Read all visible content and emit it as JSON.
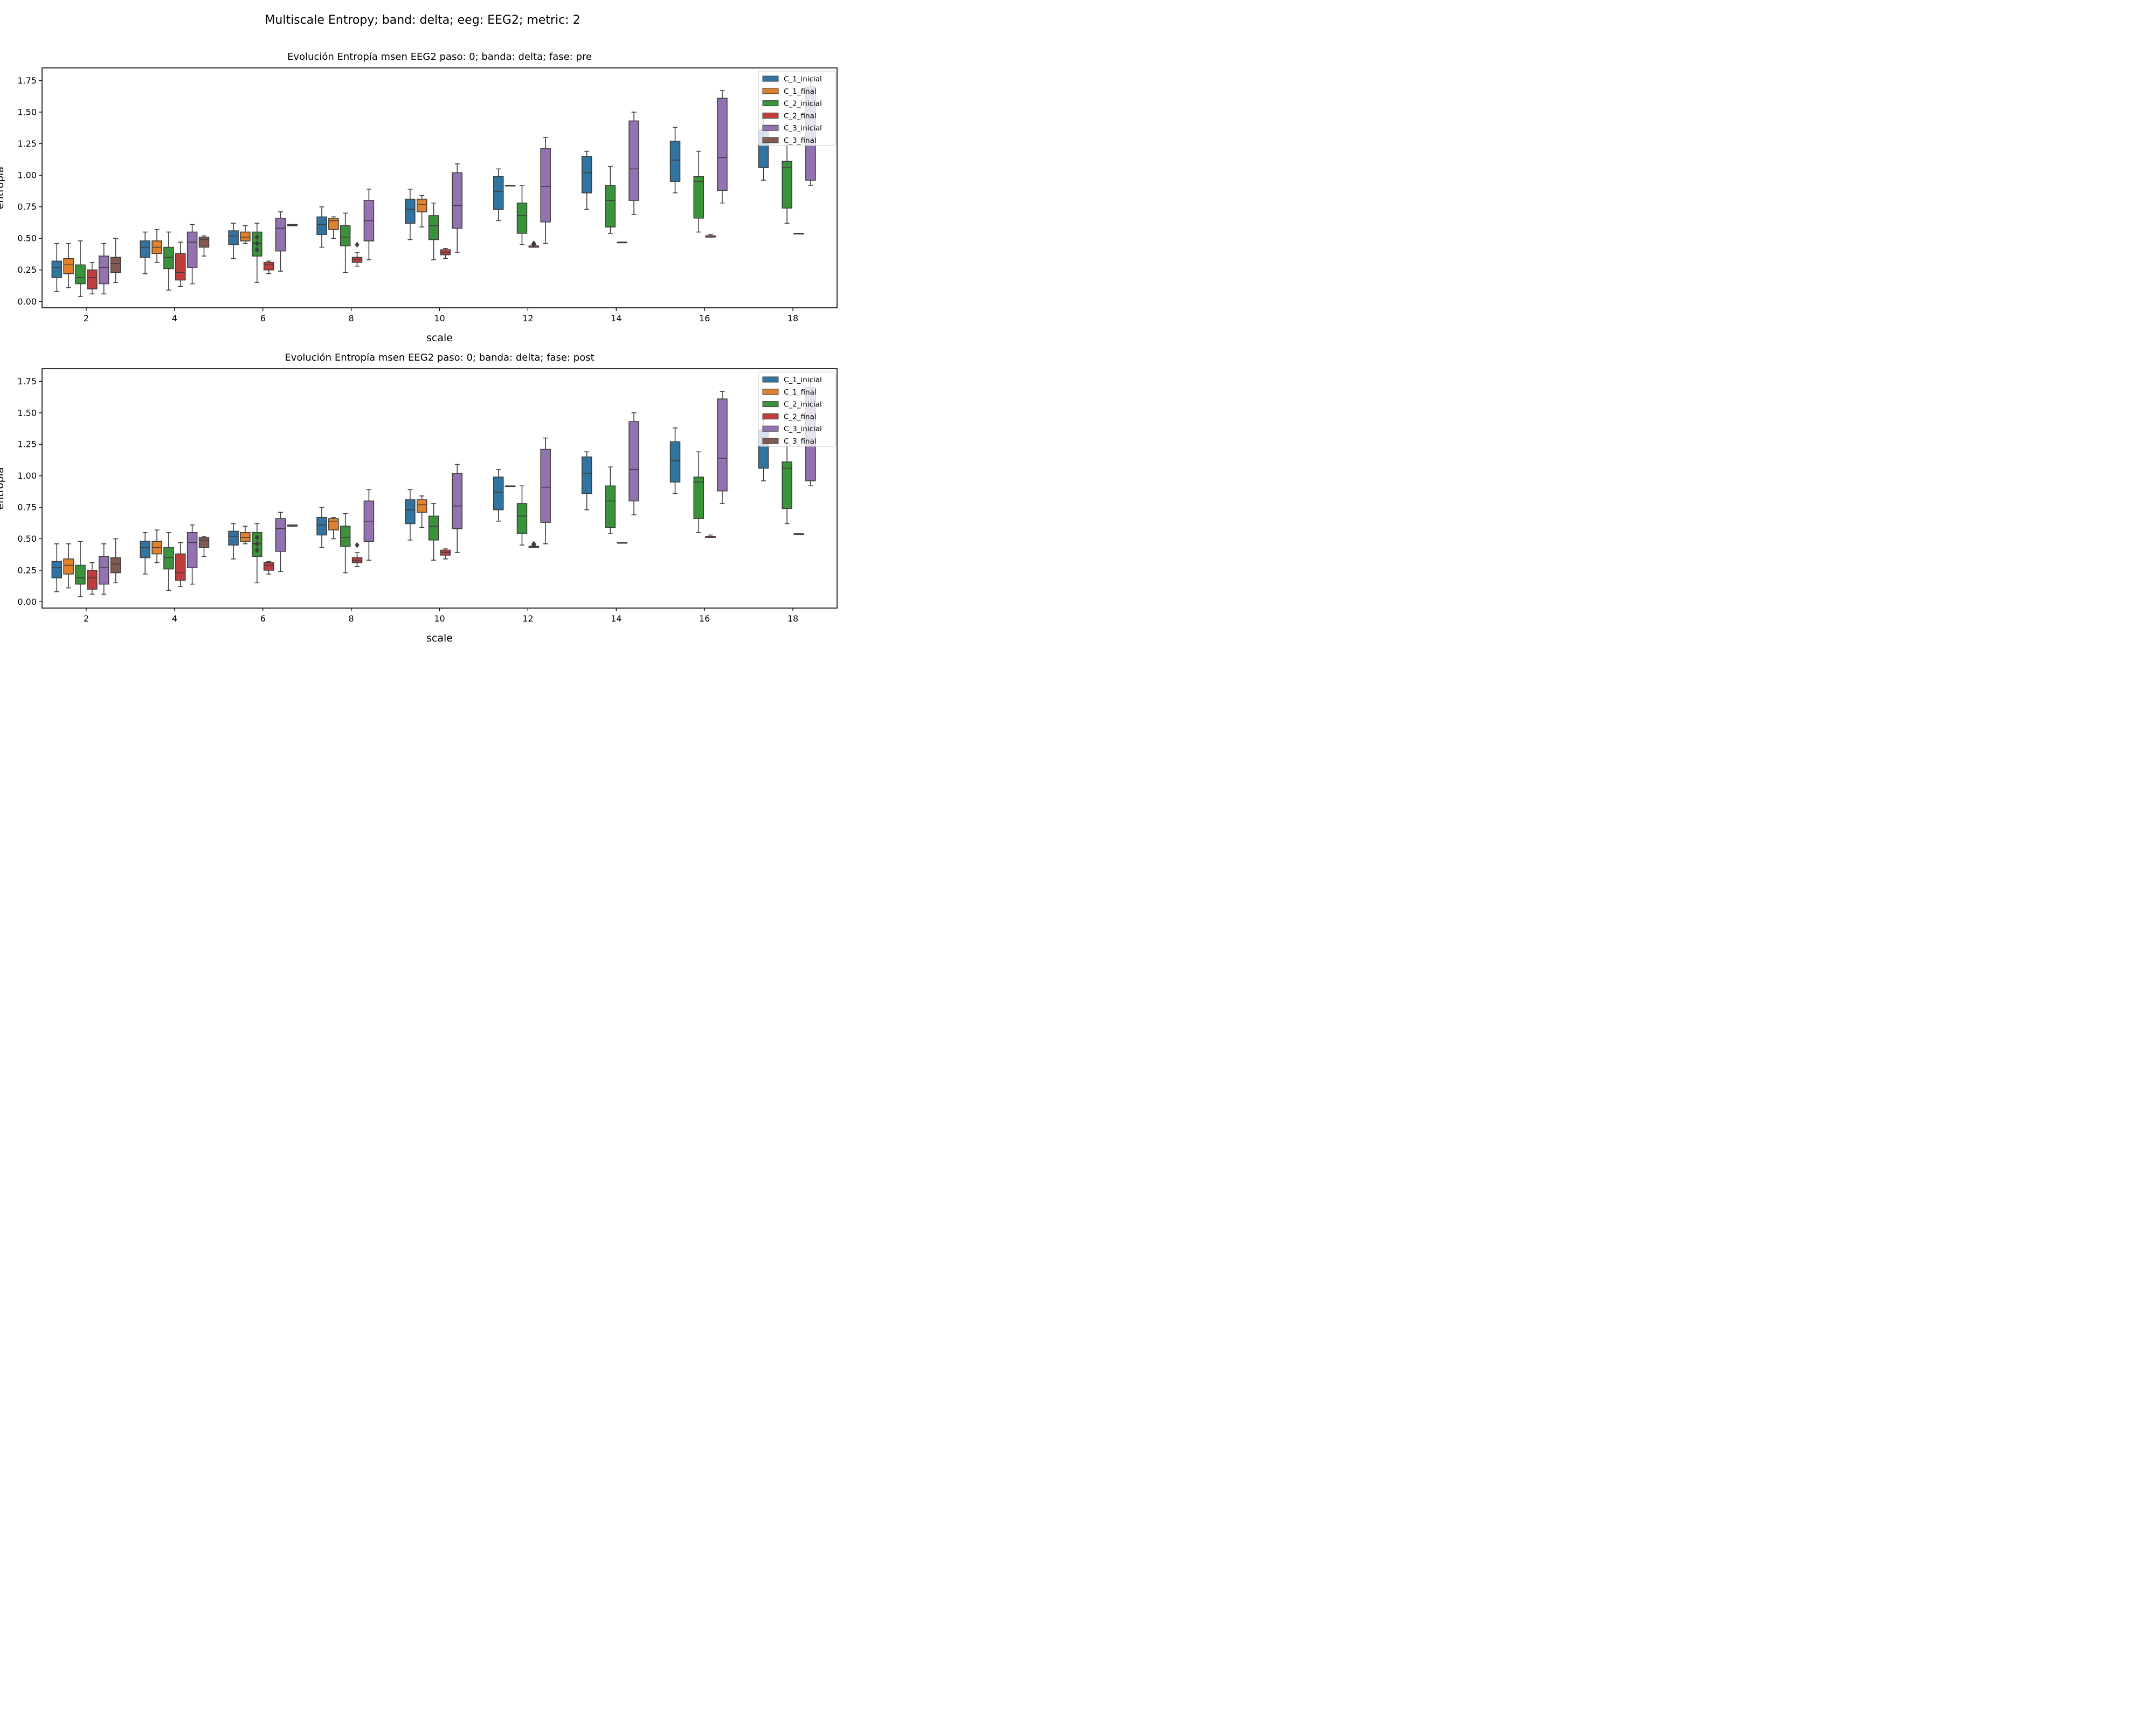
{
  "figure": {
    "suptitle": "Multiscale Entropy; band: delta; eeg: EEG2; metric: 2",
    "colors": {
      "C_1_inicial": "#3274a1",
      "C_1_final": "#e1812c",
      "C_2_inicial": "#3a923a",
      "C_2_final": "#c03d3e",
      "C_3_inicial": "#9372b2",
      "C_3_final": "#845b53"
    }
  },
  "chart_data": [
    {
      "type": "box",
      "title": "Evolución Entropía msen EEG2 paso: 0; banda: delta; fase: pre",
      "xlabel": "scale",
      "ylabel": "entropía",
      "categories": [
        "2",
        "4",
        "6",
        "8",
        "10",
        "12",
        "14",
        "16",
        "18"
      ],
      "ylim": [
        -0.05,
        1.85
      ],
      "yticks": [
        "0.00",
        "0.25",
        "0.50",
        "0.75",
        "1.00",
        "1.25",
        "1.50",
        "1.75"
      ],
      "legend": {
        "loc": "upper-right",
        "entries": [
          "C_1_inicial",
          "C_1_final",
          "C_2_inicial",
          "C_2_final",
          "C_3_inicial",
          "C_3_final"
        ]
      },
      "series": [
        {
          "name": "C_1_inicial",
          "boxes": [
            {
              "min": 0.08,
              "q1": 0.19,
              "med": 0.27,
              "q3": 0.32,
              "max": 0.46
            },
            {
              "min": 0.22,
              "q1": 0.35,
              "med": 0.43,
              "q3": 0.48,
              "max": 0.55
            },
            {
              "min": 0.34,
              "q1": 0.45,
              "med": 0.52,
              "q3": 0.56,
              "max": 0.62
            },
            {
              "min": 0.43,
              "q1": 0.53,
              "med": 0.61,
              "q3": 0.67,
              "max": 0.75
            },
            {
              "min": 0.49,
              "q1": 0.62,
              "med": 0.73,
              "q3": 0.81,
              "max": 0.89
            },
            {
              "min": 0.64,
              "q1": 0.73,
              "med": 0.87,
              "q3": 0.99,
              "max": 1.05
            },
            {
              "min": 0.73,
              "q1": 0.86,
              "med": 1.02,
              "q3": 1.15,
              "max": 1.19
            },
            {
              "min": 0.86,
              "q1": 0.95,
              "med": 1.12,
              "q3": 1.27,
              "max": 1.38
            },
            {
              "min": 0.96,
              "q1": 1.06,
              "med": 1.25,
              "q3": 1.36,
              "max": 1.45
            }
          ]
        },
        {
          "name": "C_1_final",
          "boxes": [
            {
              "min": 0.11,
              "q1": 0.22,
              "med": 0.29,
              "q3": 0.34,
              "max": 0.46
            },
            {
              "min": 0.31,
              "q1": 0.38,
              "med": 0.43,
              "q3": 0.48,
              "max": 0.57
            },
            {
              "min": 0.46,
              "q1": 0.48,
              "med": 0.51,
              "q3": 0.55,
              "max": 0.6
            },
            {
              "min": 0.5,
              "q1": 0.57,
              "med": 0.64,
              "q3": 0.66,
              "max": 0.67
            },
            {
              "min": 0.59,
              "q1": 0.71,
              "med": 0.77,
              "q3": 0.81,
              "max": 0.84
            },
            {
              "min": 0.92,
              "q1": 0.92,
              "med": 0.92,
              "q3": 0.92,
              "max": 0.92
            },
            null,
            null,
            null
          ]
        },
        {
          "name": "C_2_inicial",
          "boxes": [
            {
              "min": 0.04,
              "q1": 0.14,
              "med": 0.19,
              "q3": 0.29,
              "max": 0.48
            },
            {
              "min": 0.09,
              "q1": 0.26,
              "med": 0.35,
              "q3": 0.43,
              "max": 0.55
            },
            {
              "min": 0.15,
              "q1": 0.36,
              "med": 0.46,
              "q3": 0.55,
              "max": 0.62
            },
            {
              "min": 0.23,
              "q1": 0.44,
              "med": 0.51,
              "q3": 0.6,
              "max": 0.7
            },
            {
              "min": 0.33,
              "q1": 0.49,
              "med": 0.6,
              "q3": 0.68,
              "max": 0.78
            },
            {
              "min": 0.45,
              "q1": 0.54,
              "med": 0.68,
              "q3": 0.78,
              "max": 0.92
            },
            {
              "min": 0.54,
              "q1": 0.59,
              "med": 0.8,
              "q3": 0.92,
              "max": 1.07
            },
            {
              "min": 0.55,
              "q1": 0.66,
              "med": 0.95,
              "q3": 0.99,
              "max": 1.19
            },
            {
              "min": 0.62,
              "q1": 0.74,
              "med": 1.06,
              "q3": 1.11,
              "max": 1.26
            }
          ]
        },
        {
          "name": "C_2_final",
          "boxes": [
            {
              "min": 0.06,
              "q1": 0.1,
              "med": 0.19,
              "q3": 0.25,
              "max": 0.31
            },
            {
              "min": 0.12,
              "q1": 0.17,
              "med": 0.23,
              "q3": 0.38,
              "max": 0.47
            },
            {
              "min": 0.22,
              "q1": 0.25,
              "med": 0.29,
              "q3": 0.31,
              "max": 0.32
            },
            {
              "min": 0.28,
              "q1": 0.31,
              "med": 0.33,
              "q3": 0.35,
              "max": 0.39
            },
            {
              "min": 0.34,
              "q1": 0.37,
              "med": 0.39,
              "q3": 0.41,
              "max": 0.42
            },
            {
              "min": 0.43,
              "q1": 0.43,
              "med": 0.44,
              "q3": 0.44,
              "max": 0.45
            },
            {
              "min": 0.47,
              "q1": 0.47,
              "med": 0.47,
              "q3": 0.47,
              "max": 0.47
            },
            {
              "min": 0.51,
              "q1": 0.51,
              "med": 0.52,
              "q3": 0.52,
              "max": 0.53
            },
            {
              "min": 0.54,
              "q1": 0.54,
              "med": 0.54,
              "q3": 0.54,
              "max": 0.54
            }
          ]
        },
        {
          "name": "C_3_inicial",
          "boxes": [
            {
              "min": 0.06,
              "q1": 0.14,
              "med": 0.27,
              "q3": 0.36,
              "max": 0.46
            },
            {
              "min": 0.14,
              "q1": 0.27,
              "med": 0.47,
              "q3": 0.55,
              "max": 0.61
            },
            {
              "min": 0.24,
              "q1": 0.4,
              "med": 0.58,
              "q3": 0.66,
              "max": 0.71
            },
            {
              "min": 0.33,
              "q1": 0.48,
              "med": 0.64,
              "q3": 0.8,
              "max": 0.89
            },
            {
              "min": 0.39,
              "q1": 0.58,
              "med": 0.76,
              "q3": 1.02,
              "max": 1.09
            },
            {
              "min": 0.46,
              "q1": 0.63,
              "med": 0.91,
              "q3": 1.21,
              "max": 1.3
            },
            {
              "min": 0.69,
              "q1": 0.8,
              "med": 1.05,
              "q3": 1.43,
              "max": 1.5
            },
            {
              "min": 0.78,
              "q1": 0.88,
              "med": 1.14,
              "q3": 1.61,
              "max": 1.67
            },
            {
              "min": 0.92,
              "q1": 0.96,
              "med": 1.3,
              "q3": 1.7,
              "max": 1.76
            }
          ]
        },
        {
          "name": "C_3_final",
          "boxes": [
            {
              "min": 0.15,
              "q1": 0.23,
              "med": 0.3,
              "q3": 0.35,
              "max": 0.5
            },
            {
              "min": 0.36,
              "q1": 0.43,
              "med": 0.49,
              "q3": 0.51,
              "max": 0.52
            },
            {
              "min": 0.6,
              "q1": 0.6,
              "med": 0.61,
              "q3": 0.61,
              "max": 0.61
            },
            null,
            null,
            null,
            null,
            null,
            null
          ]
        }
      ],
      "outliers": [
        {
          "series": "C_2_inicial",
          "category": "6",
          "values": [
            0.41,
            0.46,
            0.51
          ]
        },
        {
          "series": "C_2_final",
          "category": "8",
          "values": [
            0.45
          ]
        },
        {
          "series": "C_2_final",
          "category": "12",
          "values": [
            0.46,
            0.45
          ]
        }
      ]
    },
    {
      "type": "box",
      "title": "Evolución Entropía msen EEG2 paso: 0; banda: delta; fase: post",
      "xlabel": "scale",
      "ylabel": "entropía",
      "categories": [
        "2",
        "4",
        "6",
        "8",
        "10",
        "12",
        "14",
        "16",
        "18"
      ],
      "ylim": [
        -0.05,
        1.85
      ],
      "yticks": [
        "0.00",
        "0.25",
        "0.50",
        "0.75",
        "1.00",
        "1.25",
        "1.50",
        "1.75"
      ],
      "legend": {
        "loc": "upper-right",
        "entries": [
          "C_1_inicial",
          "C_1_final",
          "C_2_inicial",
          "C_2_final",
          "C_3_inicial",
          "C_3_final"
        ]
      },
      "series": [
        {
          "name": "C_1_inicial",
          "boxes": [
            {
              "min": 0.08,
              "q1": 0.19,
              "med": 0.27,
              "q3": 0.32,
              "max": 0.46
            },
            {
              "min": 0.22,
              "q1": 0.35,
              "med": 0.43,
              "q3": 0.48,
              "max": 0.55
            },
            {
              "min": 0.34,
              "q1": 0.45,
              "med": 0.52,
              "q3": 0.56,
              "max": 0.62
            },
            {
              "min": 0.43,
              "q1": 0.53,
              "med": 0.61,
              "q3": 0.67,
              "max": 0.75
            },
            {
              "min": 0.49,
              "q1": 0.62,
              "med": 0.73,
              "q3": 0.81,
              "max": 0.89
            },
            {
              "min": 0.64,
              "q1": 0.73,
              "med": 0.87,
              "q3": 0.99,
              "max": 1.05
            },
            {
              "min": 0.73,
              "q1": 0.86,
              "med": 1.02,
              "q3": 1.15,
              "max": 1.19
            },
            {
              "min": 0.86,
              "q1": 0.95,
              "med": 1.12,
              "q3": 1.27,
              "max": 1.38
            },
            {
              "min": 0.96,
              "q1": 1.06,
              "med": 1.25,
              "q3": 1.36,
              "max": 1.45
            }
          ]
        },
        {
          "name": "C_1_final",
          "boxes": [
            {
              "min": 0.11,
              "q1": 0.22,
              "med": 0.29,
              "q3": 0.34,
              "max": 0.46
            },
            {
              "min": 0.31,
              "q1": 0.38,
              "med": 0.43,
              "q3": 0.48,
              "max": 0.57
            },
            {
              "min": 0.46,
              "q1": 0.48,
              "med": 0.51,
              "q3": 0.55,
              "max": 0.6
            },
            {
              "min": 0.5,
              "q1": 0.57,
              "med": 0.64,
              "q3": 0.66,
              "max": 0.67
            },
            {
              "min": 0.59,
              "q1": 0.71,
              "med": 0.77,
              "q3": 0.81,
              "max": 0.84
            },
            {
              "min": 0.92,
              "q1": 0.92,
              "med": 0.92,
              "q3": 0.92,
              "max": 0.92
            },
            null,
            null,
            null
          ]
        },
        {
          "name": "C_2_inicial",
          "boxes": [
            {
              "min": 0.04,
              "q1": 0.14,
              "med": 0.19,
              "q3": 0.29,
              "max": 0.48
            },
            {
              "min": 0.09,
              "q1": 0.26,
              "med": 0.35,
              "q3": 0.43,
              "max": 0.55
            },
            {
              "min": 0.15,
              "q1": 0.36,
              "med": 0.46,
              "q3": 0.55,
              "max": 0.62
            },
            {
              "min": 0.23,
              "q1": 0.44,
              "med": 0.51,
              "q3": 0.6,
              "max": 0.7
            },
            {
              "min": 0.33,
              "q1": 0.49,
              "med": 0.6,
              "q3": 0.68,
              "max": 0.78
            },
            {
              "min": 0.45,
              "q1": 0.54,
              "med": 0.68,
              "q3": 0.78,
              "max": 0.92
            },
            {
              "min": 0.54,
              "q1": 0.59,
              "med": 0.8,
              "q3": 0.92,
              "max": 1.07
            },
            {
              "min": 0.55,
              "q1": 0.66,
              "med": 0.95,
              "q3": 0.99,
              "max": 1.19
            },
            {
              "min": 0.62,
              "q1": 0.74,
              "med": 1.06,
              "q3": 1.11,
              "max": 1.26
            }
          ]
        },
        {
          "name": "C_2_final",
          "boxes": [
            {
              "min": 0.06,
              "q1": 0.1,
              "med": 0.19,
              "q3": 0.25,
              "max": 0.31
            },
            {
              "min": 0.12,
              "q1": 0.17,
              "med": 0.23,
              "q3": 0.38,
              "max": 0.47
            },
            {
              "min": 0.22,
              "q1": 0.25,
              "med": 0.29,
              "q3": 0.31,
              "max": 0.32
            },
            {
              "min": 0.28,
              "q1": 0.31,
              "med": 0.33,
              "q3": 0.35,
              "max": 0.39
            },
            {
              "min": 0.34,
              "q1": 0.37,
              "med": 0.39,
              "q3": 0.41,
              "max": 0.42
            },
            {
              "min": 0.43,
              "q1": 0.43,
              "med": 0.44,
              "q3": 0.44,
              "max": 0.45
            },
            {
              "min": 0.47,
              "q1": 0.47,
              "med": 0.47,
              "q3": 0.47,
              "max": 0.47
            },
            {
              "min": 0.51,
              "q1": 0.51,
              "med": 0.52,
              "q3": 0.52,
              "max": 0.53
            },
            {
              "min": 0.54,
              "q1": 0.54,
              "med": 0.54,
              "q3": 0.54,
              "max": 0.54
            }
          ]
        },
        {
          "name": "C_3_inicial",
          "boxes": [
            {
              "min": 0.06,
              "q1": 0.14,
              "med": 0.27,
              "q3": 0.36,
              "max": 0.46
            },
            {
              "min": 0.14,
              "q1": 0.27,
              "med": 0.47,
              "q3": 0.55,
              "max": 0.61
            },
            {
              "min": 0.24,
              "q1": 0.4,
              "med": 0.58,
              "q3": 0.66,
              "max": 0.71
            },
            {
              "min": 0.33,
              "q1": 0.48,
              "med": 0.64,
              "q3": 0.8,
              "max": 0.89
            },
            {
              "min": 0.39,
              "q1": 0.58,
              "med": 0.76,
              "q3": 1.02,
              "max": 1.09
            },
            {
              "min": 0.46,
              "q1": 0.63,
              "med": 0.91,
              "q3": 1.21,
              "max": 1.3
            },
            {
              "min": 0.69,
              "q1": 0.8,
              "med": 1.05,
              "q3": 1.43,
              "max": 1.5
            },
            {
              "min": 0.78,
              "q1": 0.88,
              "med": 1.14,
              "q3": 1.61,
              "max": 1.67
            },
            {
              "min": 0.92,
              "q1": 0.96,
              "med": 1.3,
              "q3": 1.7,
              "max": 1.76
            }
          ]
        },
        {
          "name": "C_3_final",
          "boxes": [
            {
              "min": 0.15,
              "q1": 0.23,
              "med": 0.3,
              "q3": 0.35,
              "max": 0.5
            },
            {
              "min": 0.36,
              "q1": 0.43,
              "med": 0.49,
              "q3": 0.51,
              "max": 0.52
            },
            {
              "min": 0.6,
              "q1": 0.6,
              "med": 0.61,
              "q3": 0.61,
              "max": 0.61
            },
            null,
            null,
            null,
            null,
            null,
            null
          ]
        }
      ],
      "outliers": [
        {
          "series": "C_2_inicial",
          "category": "6",
          "values": [
            0.41,
            0.46,
            0.51
          ]
        },
        {
          "series": "C_2_final",
          "category": "8",
          "values": [
            0.45
          ]
        },
        {
          "series": "C_2_final",
          "category": "12",
          "values": [
            0.46,
            0.45
          ]
        }
      ]
    }
  ]
}
